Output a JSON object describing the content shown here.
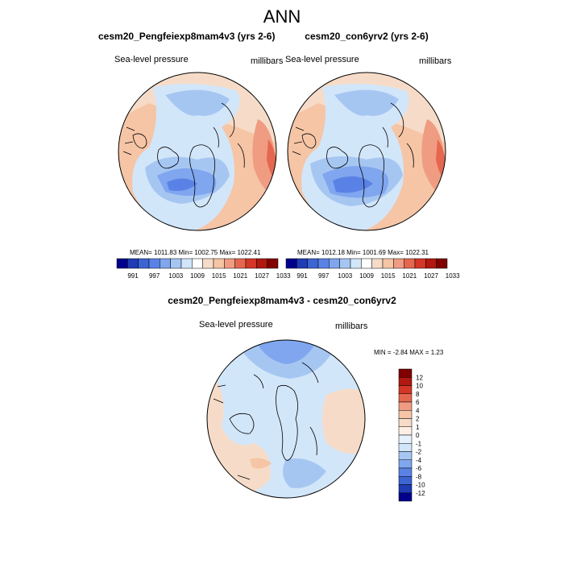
{
  "figure": {
    "title": "ANN",
    "colors": {
      "background": "#ffffff",
      "coastline": "#000000",
      "light_blue": "#d2e6fa",
      "mid_blue": "#a6c6f2",
      "blue": "#7fa6ee",
      "deep_blue": "#5a82e6",
      "light_peach": "#f6dcc8",
      "peach": "#f5c5a6",
      "salmon": "#ef9c82",
      "red": "#e5674f"
    }
  },
  "chart_data": [
    {
      "type": "heatmap",
      "projection": "polar-stereographic (north)",
      "title": "cesm20_Pengfeiexp8mam4v3 (yrs 2-6)",
      "left_label": "Sea-level pressure",
      "right_label": "millibars",
      "stats": {
        "mean": 1011.83,
        "min": 1002.75,
        "max": 1022.41
      },
      "stats_text": "MEAN= 1011.83  Min= 1002.75  Max= 1022.41",
      "colorbar": {
        "levels": [
          "991",
          "997",
          "1003",
          "1009",
          "1015",
          "1021",
          "1027",
          "1033"
        ],
        "colors": [
          "#00008c",
          "#1f3cb4",
          "#3c64d2",
          "#5a82e6",
          "#7fa6ee",
          "#a6c6f2",
          "#d2e6fa",
          "#ffffff",
          "#f6dcc8",
          "#f5c5a6",
          "#ef9c82",
          "#e5674f",
          "#d43628",
          "#b01810",
          "#800000"
        ]
      }
    },
    {
      "type": "heatmap",
      "projection": "polar-stereographic (north)",
      "title": "cesm20_con6yrv2 (yrs 2-6)",
      "left_label": "Sea-level pressure",
      "right_label": "millibars",
      "stats": {
        "mean": 1012.18,
        "min": 1001.69,
        "max": 1022.31
      },
      "stats_text": "MEAN= 1012.18  Min= 1001.69  Max= 1022.31",
      "colorbar": {
        "levels": [
          "991",
          "997",
          "1003",
          "1009",
          "1015",
          "1021",
          "1027",
          "1033"
        ],
        "colors": [
          "#00008c",
          "#1f3cb4",
          "#3c64d2",
          "#5a82e6",
          "#7fa6ee",
          "#a6c6f2",
          "#d2e6fa",
          "#ffffff",
          "#f6dcc8",
          "#f5c5a6",
          "#ef9c82",
          "#e5674f",
          "#d43628",
          "#b01810",
          "#800000"
        ]
      }
    },
    {
      "type": "heatmap",
      "projection": "polar-stereographic (north)",
      "title": "cesm20_Pengfeiexp8mam4v3 - cesm20_con6yrv2",
      "left_label": "Sea-level pressure",
      "right_label": "millibars",
      "stats": {
        "min": -2.84,
        "max": 1.23
      },
      "stats_text": "MIN =  -2.84 MAX =   1.23",
      "colorbar": {
        "orientation": "vertical",
        "levels": [
          "12",
          "10",
          "8",
          "6",
          "4",
          "2",
          "1",
          "0",
          "-1",
          "-2",
          "-4",
          "-6",
          "-8",
          "-10",
          "-12"
        ],
        "colors": [
          "#800000",
          "#b01810",
          "#d43628",
          "#e5674f",
          "#ef9c82",
          "#f5c5a6",
          "#f6dcc8",
          "#fbeee4",
          "#e4f0fb",
          "#d2e6fa",
          "#a6c6f2",
          "#7fa6ee",
          "#5a82e6",
          "#3c64d2",
          "#1f3cb4",
          "#00008c"
        ]
      }
    }
  ]
}
